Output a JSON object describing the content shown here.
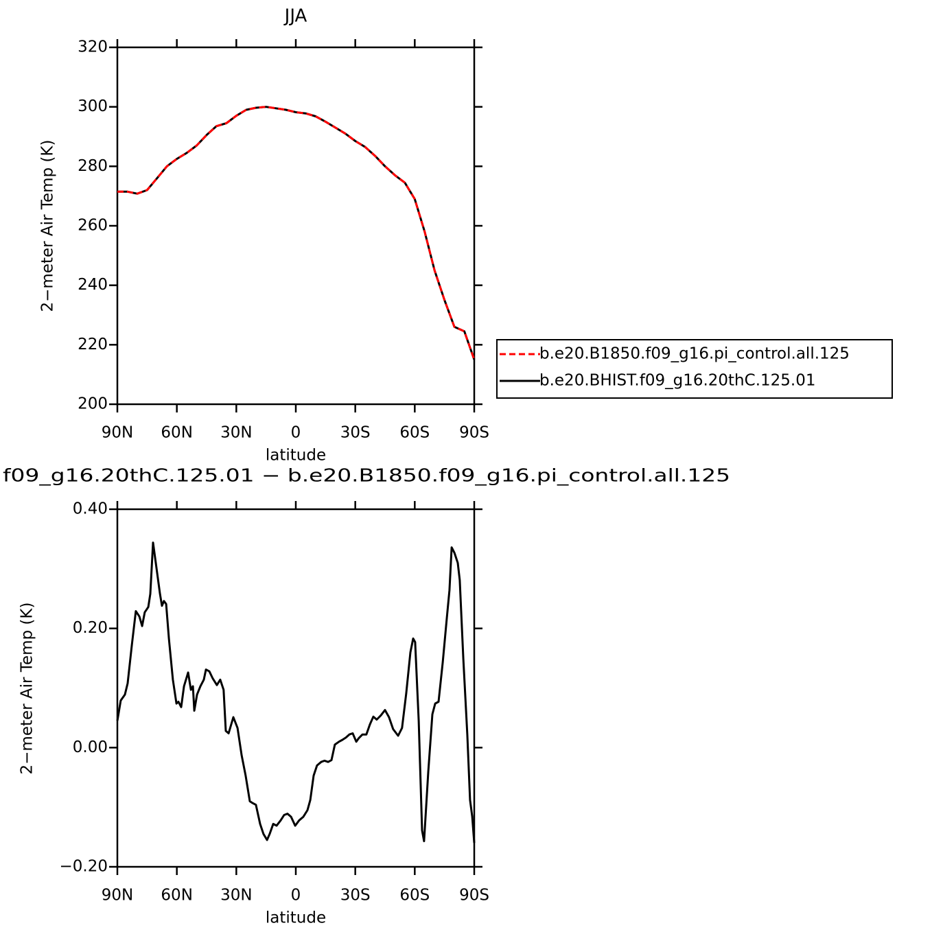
{
  "chart_data": [
    {
      "type": "line",
      "title": "JJA",
      "x_label": "latitude",
      "y_label": "2−meter Air Temp (K)",
      "xlim": [
        90,
        -90
      ],
      "ylim": [
        200,
        320
      ],
      "xticks": [
        {
          "value": 90,
          "label": "90N"
        },
        {
          "value": 60,
          "label": "60N"
        },
        {
          "value": 30,
          "label": "30N"
        },
        0,
        {
          "value": -30,
          "label": "30S"
        },
        {
          "value": -60,
          "label": "60S"
        },
        {
          "value": -90,
          "label": "90S"
        }
      ],
      "yticks": [
        200,
        220,
        240,
        260,
        280,
        300,
        320
      ],
      "legend": "right",
      "x": [
        90,
        85,
        80,
        75,
        70,
        65,
        60,
        55,
        50,
        45,
        40,
        35,
        30,
        25,
        20,
        15,
        10,
        5,
        0,
        -5,
        -10,
        -15,
        -20,
        -25,
        -30,
        -35,
        -40,
        -45,
        -50,
        -55,
        -60,
        -65,
        -70,
        -75,
        -80,
        -85,
        -90
      ],
      "series": [
        {
          "name": "b.e20.B1850.f09_g16.pi_control.all.125",
          "color": "#ff0000",
          "dash": true,
          "values": [
            271.5,
            271.5,
            270.8,
            272,
            276,
            280,
            282.5,
            284.5,
            287,
            290.5,
            293.5,
            294.5,
            297,
            299,
            299.7,
            300,
            299.5,
            299,
            298.2,
            297.8,
            296.8,
            295,
            293,
            291,
            288.5,
            286.5,
            283.5,
            280,
            277,
            274.5,
            269,
            258,
            245,
            235,
            226,
            224.5,
            215
          ]
        },
        {
          "name": "b.e20.BHIST.f09_g16.20thC.125.01",
          "color": "#000000",
          "dash": false,
          "values": [
            271.5,
            271.5,
            270.8,
            272,
            276,
            280,
            282.5,
            284.5,
            287,
            290.5,
            293.5,
            294.5,
            297,
            299,
            299.7,
            300,
            299.5,
            299,
            298.2,
            297.8,
            296.8,
            295,
            293,
            291,
            288.5,
            286.5,
            283.5,
            280,
            277,
            274.5,
            269,
            258,
            245,
            235,
            226,
            224.5,
            215
          ]
        }
      ]
    },
    {
      "type": "line",
      "title": "f09_g16.20thC.125.01 − b.e20.B1850.f09_g16.pi_control.all.125",
      "x_label": "latitude",
      "y_label": "2−meter Air Temp (K)",
      "xlim": [
        90,
        -90
      ],
      "ylim": [
        -0.2,
        0.4
      ],
      "xticks": [
        {
          "value": 90,
          "label": "90N"
        },
        {
          "value": 60,
          "label": "60N"
        },
        {
          "value": 30,
          "label": "30N"
        },
        0,
        {
          "value": -30,
          "label": "30S"
        },
        {
          "value": -60,
          "label": "60S"
        },
        {
          "value": -90,
          "label": "90S"
        }
      ],
      "yticks": [
        {
          "value": -0.2,
          "label": "−0.20"
        },
        {
          "value": 0,
          "label": "0.00"
        },
        {
          "value": 0.2,
          "label": "0.20"
        },
        {
          "value": 0.4,
          "label": "0.40"
        }
      ],
      "x": [
        90,
        88.3,
        86.2,
        84.8,
        82.7,
        80.7,
        78.9,
        77.5,
        76.2,
        74.4,
        73.4,
        72.0,
        70.6,
        68.5,
        67.5,
        66.5,
        65.4,
        64.0,
        62.0,
        60.2,
        59.2,
        57.8,
        56.4,
        54.3,
        52.9,
        51.9,
        51.2,
        49.8,
        48.1,
        46.4,
        45.3,
        43.6,
        41.9,
        39.8,
        38.1,
        36.4,
        35.3,
        33.9,
        31.5,
        29.4,
        27.3,
        25.3,
        23.2,
        21.8,
        20.1,
        18.0,
        16.3,
        14.5,
        13.2,
        11.4,
        9.7,
        7.6,
        5.9,
        4.2,
        2.4,
        0.3,
        -1.7,
        -3.8,
        -5.9,
        -7.3,
        -9.0,
        -10.7,
        -12.8,
        -14.5,
        -16.3,
        -18.0,
        -19.7,
        -21.8,
        -23.5,
        -25.3,
        -27.0,
        -28.7,
        -30.5,
        -31.8,
        -33.6,
        -35.6,
        -37.4,
        -39.1,
        -40.8,
        -42.9,
        -45.0,
        -47.0,
        -49.1,
        -51.6,
        -53.6,
        -55.7,
        -57.8,
        -59.2,
        -60.2,
        -62.0,
        -63.7,
        -64.7,
        -66.8,
        -68.9,
        -70.3,
        -72.0,
        -74.1,
        -76.2,
        -77.5,
        -78.6,
        -80.0,
        -81.7,
        -82.7,
        -84.5,
        -86.5,
        -87.9,
        -89.0,
        -90.0
      ],
      "series": [
        {
          "color": "#000000",
          "dash": false,
          "values": [
            0.045,
            0.079,
            0.089,
            0.108,
            0.172,
            0.229,
            0.22,
            0.204,
            0.227,
            0.236,
            0.258,
            0.344,
            0.31,
            0.258,
            0.238,
            0.246,
            0.241,
            0.183,
            0.114,
            0.074,
            0.077,
            0.068,
            0.103,
            0.126,
            0.097,
            0.103,
            0.062,
            0.089,
            0.103,
            0.114,
            0.131,
            0.128,
            0.116,
            0.105,
            0.114,
            0.097,
            0.028,
            0.024,
            0.051,
            0.033,
            -0.013,
            -0.047,
            -0.09,
            -0.093,
            -0.096,
            -0.128,
            -0.145,
            -0.155,
            -0.145,
            -0.128,
            -0.131,
            -0.122,
            -0.113,
            -0.111,
            -0.116,
            -0.131,
            -0.122,
            -0.116,
            -0.105,
            -0.088,
            -0.047,
            -0.03,
            -0.024,
            -0.022,
            -0.024,
            -0.021,
            0.005,
            0.01,
            0.013,
            0.017,
            0.022,
            0.024,
            0.01,
            0.016,
            0.022,
            0.022,
            0.039,
            0.052,
            0.047,
            0.054,
            0.063,
            0.051,
            0.031,
            0.02,
            0.033,
            0.091,
            0.16,
            0.183,
            0.177,
            0.045,
            -0.139,
            -0.157,
            -0.041,
            0.056,
            0.074,
            0.077,
            0.143,
            0.218,
            0.264,
            0.336,
            0.327,
            0.31,
            0.281,
            0.149,
            0.022,
            -0.088,
            -0.116,
            -0.16
          ]
        }
      ]
    }
  ]
}
